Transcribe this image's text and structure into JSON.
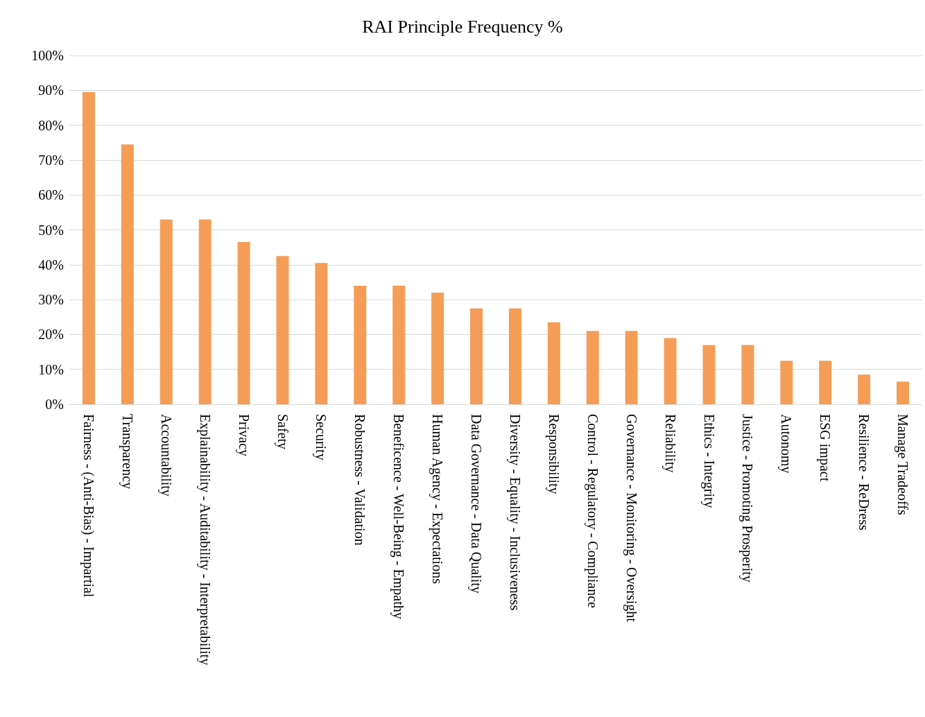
{
  "chart_data": {
    "type": "bar",
    "title": "RAI Principle Frequency %",
    "categories": [
      "Fairness - (Anti-Bias) - Impartial",
      "Transparency",
      "Accountability",
      "Explainability - Auditability - Interpretability",
      "Privacy",
      "Safety",
      "Security",
      "Robustness - Validation",
      "Beneficence - Well-Being - Empathy",
      "Human Agency - Expectations",
      "Data Governance - Data Quality",
      "Diversity - Equality - Inclusiveness",
      "Responsibility",
      "Control - Regulatory - Compliance",
      "Governance - Monitoring - Oversight",
      "Reliability",
      "Ethics - Integrity",
      "Justice - Promoting Prosperity",
      "Autonomy",
      "ESG impact",
      "Resilience - ReDress",
      "Manage Tradeoffs"
    ],
    "values": [
      89.5,
      74.5,
      53,
      53,
      46.5,
      42.5,
      40.5,
      34,
      34,
      32,
      27.5,
      27.5,
      23.5,
      21,
      21,
      19,
      17,
      17,
      12.5,
      12.5,
      8.5,
      6.5
    ],
    "color": "#f59d56",
    "ylim": [
      0,
      100
    ],
    "yticks": [
      {
        "value": 0,
        "label": "0%"
      },
      {
        "value": 10,
        "label": "10%"
      },
      {
        "value": 20,
        "label": "20%"
      },
      {
        "value": 30,
        "label": "30%"
      },
      {
        "value": 40,
        "label": "40%"
      },
      {
        "value": 50,
        "label": "50%"
      },
      {
        "value": 60,
        "label": "60%"
      },
      {
        "value": 70,
        "label": "70%"
      },
      {
        "value": 80,
        "label": "80%"
      },
      {
        "value": 90,
        "label": "90%"
      },
      {
        "value": 100,
        "label": "100%"
      }
    ],
    "grid": "y"
  }
}
